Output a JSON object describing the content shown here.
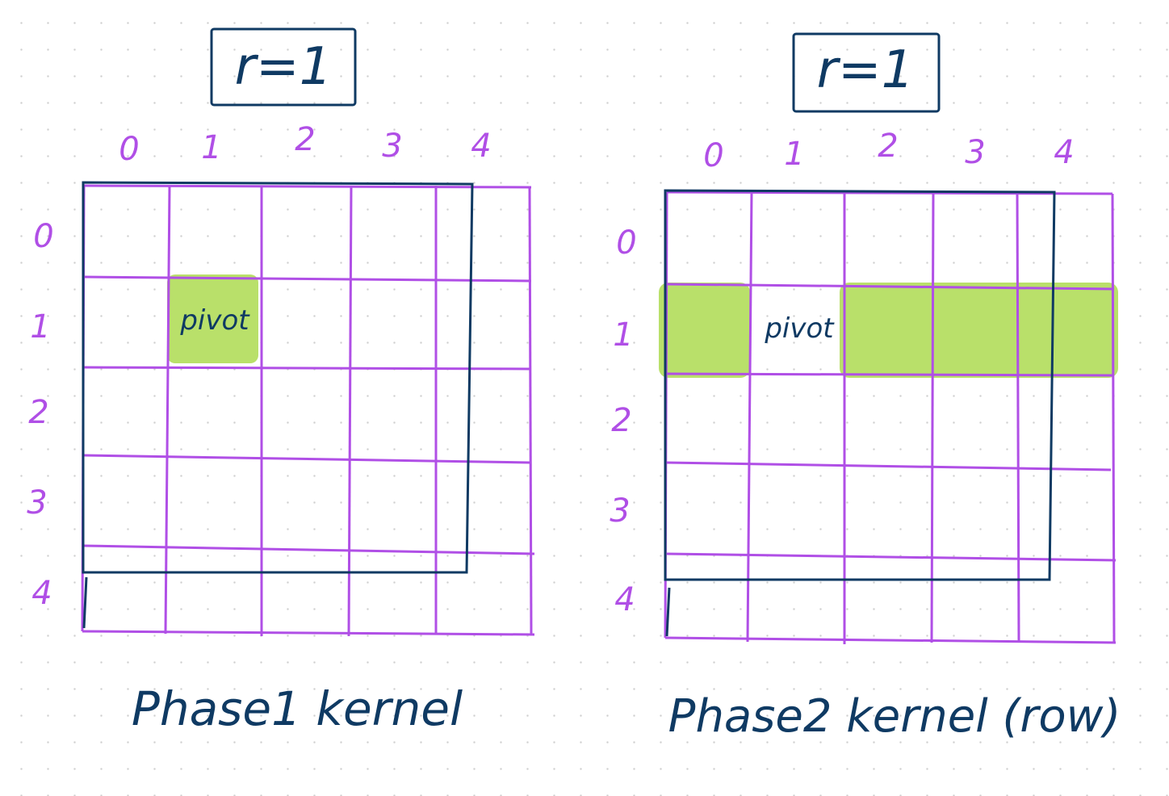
{
  "colors": {
    "grid": "#b04fe6",
    "outline": "#0f3a63",
    "highlight": "#b9e06a"
  },
  "left": {
    "radius_label": "r=1",
    "col_labels": [
      "0",
      "1",
      "2",
      "3",
      "4"
    ],
    "row_labels": [
      "0",
      "1",
      "2",
      "3",
      "4"
    ],
    "pivot_text": "pivot",
    "caption": "Phase1 kernel"
  },
  "right": {
    "radius_label": "r=1",
    "col_labels": [
      "0",
      "1",
      "2",
      "3",
      "4"
    ],
    "row_labels": [
      "0",
      "1",
      "2",
      "3",
      "4"
    ],
    "pivot_text": "pivot",
    "caption": "Phase2 kernel (row)"
  }
}
